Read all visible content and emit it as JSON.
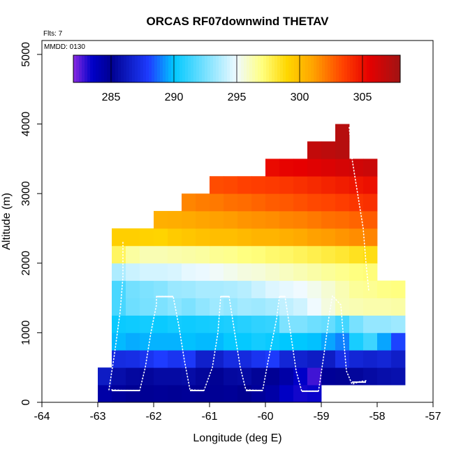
{
  "chart_data": {
    "type": "heatmap",
    "title": "ORCAS RF07downwind THETAV",
    "xlabel": "Longitude (deg E)",
    "ylabel": "Altitude (m)",
    "xlim": [
      -64,
      -57
    ],
    "ylim": [
      0,
      5200
    ],
    "x_ticks": [
      -64,
      -63,
      -62,
      -61,
      -60,
      -59,
      -58,
      -57
    ],
    "y_ticks": [
      0,
      1000,
      2000,
      3000,
      4000,
      5000
    ],
    "annotations": {
      "flights": "Flts: 7",
      "date": "MMDD: 0130"
    },
    "colorbar": {
      "range": [
        282,
        308
      ],
      "ticks": [
        285,
        290,
        295,
        300,
        305
      ],
      "palette": [
        "#8a2be2",
        "#0000c8",
        "#000090",
        "#1e3cff",
        "#00c8ff",
        "#f0faff",
        "#ffff80",
        "#ffd700",
        "#ffa500",
        "#ff4000",
        "#e60000",
        "#a01414"
      ],
      "palette_stops": [
        282,
        283.5,
        285,
        288,
        290,
        295,
        297,
        299,
        301,
        303.5,
        305.5,
        308
      ]
    },
    "cell_size": {
      "lon": 0.25,
      "alt": 250
    },
    "rows": [
      {
        "alt": 0,
        "lon_start": -63.0,
        "values": [
          284.4,
          284.7,
          284.9,
          284.9,
          284.8,
          284.9,
          284.8,
          284.9,
          284.9,
          284.8,
          285.0,
          284.7,
          284.4,
          283.6,
          283.3,
          283.4
        ]
      },
      {
        "alt": 250,
        "lon_start": -63.0,
        "values": [
          286.4,
          285.7,
          285.4,
          285.3,
          285.5,
          285.5,
          285.6,
          285.3,
          285.1,
          285.4,
          285.5,
          285.2,
          284.9,
          284.4,
          283.5,
          282.8,
          284.8,
          285.1,
          285.3,
          285.5,
          285.7,
          285.8
        ]
      },
      {
        "alt": 500,
        "lon_start": -62.75,
        "values": [
          287.2,
          287.3,
          287.6,
          288.0,
          287.6,
          287.8,
          286.6,
          286.6,
          287.2,
          287.1,
          287.6,
          287.9,
          286.9,
          286.7,
          286.4,
          286.4,
          287.4,
          286.9,
          286.7,
          286.9,
          286.5
        ]
      },
      {
        "alt": 750,
        "lon_start": -62.75,
        "values": [
          289.8,
          289.6,
          289.7,
          289.7,
          289.7,
          289.9,
          289.8,
          289.8,
          290.1,
          290.1,
          290.4,
          290.2,
          290.0,
          290.0,
          289.9,
          289.5,
          289.0,
          290.5,
          291.3,
          289.5,
          288.1
        ]
      },
      {
        "alt": 1000,
        "lon_start": -62.75,
        "values": [
          290.2,
          290.3,
          290.4,
          290.2,
          290.4,
          290.3,
          290.4,
          290.5,
          290.6,
          290.8,
          291.0,
          291.1,
          292.6,
          292.6,
          292.3,
          292.1,
          291.4,
          292.5,
          293.1,
          293.1,
          293.3
        ]
      },
      {
        "alt": 1250,
        "lon_start": -62.75,
        "values": [
          291.5,
          292.3,
          292.5,
          292.6,
          292.9,
          292.6,
          293.0,
          293.3,
          293.1,
          293.4,
          293.3,
          293.5,
          294.0,
          294.3,
          295.0,
          295.5,
          296.1,
          296.2,
          296.3,
          296.3,
          296.4
        ]
      },
      {
        "alt": 1500,
        "lon_start": -62.75,
        "values": [
          291.5,
          292.4,
          292.6,
          292.8,
          293.2,
          293.3,
          293.5,
          293.5,
          293.6,
          293.8,
          294.2,
          294.6,
          294.8,
          295.0,
          295.3,
          295.7,
          296.2,
          296.6,
          296.7,
          296.9,
          297.0
        ]
      },
      {
        "alt": 1750,
        "lon_start": -62.75,
        "values": [
          293.6,
          294.2,
          294.4,
          294.4,
          294.5,
          294.8,
          294.9,
          295.1,
          295.3,
          295.5,
          295.6,
          295.8,
          296.0,
          296.2,
          296.4,
          296.6,
          296.8,
          297.0,
          297.1
        ]
      },
      {
        "alt": 2000,
        "lon_start": -62.75,
        "values": [
          297.5,
          296.5,
          296.2,
          296.2,
          296.3,
          296.4,
          296.5,
          296.7,
          296.8,
          297.0,
          297.1,
          297.3,
          297.4,
          297.6,
          297.8,
          298.0,
          298.2,
          298.5,
          298.7
        ]
      },
      {
        "alt": 2250,
        "lon_start": -62.75,
        "values": [
          299.3,
          299.3,
          299.2,
          299.1,
          299.5,
          299.7,
          299.9,
          300.0,
          300.0,
          300.2,
          300.4,
          300.4,
          300.6,
          300.8,
          301.1,
          301.2,
          301.4,
          301.6,
          301.8
        ]
      },
      {
        "alt": 2500,
        "lon_start": -62.0,
        "values": [
          300.6,
          300.7,
          300.8,
          301.0,
          301.1,
          301.2,
          301.4,
          301.5,
          301.6,
          301.8,
          301.9,
          302.1,
          302.3,
          302.4,
          302.6,
          302.8
        ]
      },
      {
        "alt": 2750,
        "lon_start": -61.5,
        "values": [
          301.8,
          302.0,
          302.1,
          302.3,
          302.4,
          302.6,
          302.8,
          302.9,
          303.1,
          303.3,
          303.4,
          303.6,
          303.8,
          304.0
        ]
      },
      {
        "alt": 3000,
        "lon_start": -61.0,
        "values": [
          303.2,
          303.3,
          303.5,
          303.6,
          303.7,
          303.8,
          304.0,
          304.2,
          304.4,
          304.6,
          304.8,
          305.0
        ]
      },
      {
        "alt": 3250,
        "lon_start": -60.0,
        "values": [
          305.2,
          305.4,
          305.5,
          305.7,
          305.9,
          306.1,
          306.3,
          306.5
        ]
      },
      {
        "alt": 3500,
        "lon_start": -59.25,
        "values": [
          306.8,
          307.0,
          307.2
        ]
      },
      {
        "alt": 3750,
        "lon_start": -58.75,
        "values": [
          307.2
        ]
      }
    ],
    "flight_track": [
      [
        -62.75,
        180
      ],
      [
        -62.5,
        170
      ],
      [
        -62.25,
        170
      ],
      [
        -62.15,
        500
      ],
      [
        -62.05,
        1000
      ],
      [
        -61.95,
        1400
      ],
      [
        -61.95,
        1520
      ],
      [
        -61.65,
        1520
      ],
      [
        -61.55,
        1100
      ],
      [
        -61.45,
        600
      ],
      [
        -61.35,
        180
      ],
      [
        -61.1,
        170
      ],
      [
        -60.95,
        500
      ],
      [
        -60.85,
        1000
      ],
      [
        -60.8,
        1520
      ],
      [
        -60.65,
        1520
      ],
      [
        -60.55,
        1000
      ],
      [
        -60.45,
        500
      ],
      [
        -60.35,
        180
      ],
      [
        -60.05,
        170
      ],
      [
        -59.95,
        600
      ],
      [
        -59.8,
        1200
      ],
      [
        -59.75,
        1520
      ],
      [
        -59.65,
        1520
      ],
      [
        -59.55,
        1000
      ],
      [
        -59.45,
        450
      ],
      [
        -59.35,
        160
      ],
      [
        -59.05,
        160
      ],
      [
        -58.95,
        700
      ],
      [
        -58.85,
        1300
      ],
      [
        -58.8,
        1530
      ],
      [
        -58.65,
        1400
      ],
      [
        -58.6,
        900
      ],
      [
        -58.55,
        450
      ],
      [
        -58.45,
        260
      ],
      [
        -58.3,
        300
      ],
      [
        -58.2,
        310
      ]
    ],
    "flight_track_2": [
      [
        -62.8,
        180
      ],
      [
        -62.7,
        700
      ],
      [
        -62.6,
        1300
      ],
      [
        -62.55,
        1800
      ],
      [
        -62.55,
        2300
      ]
    ],
    "flight_track_3": [
      [
        -58.5,
        3950
      ],
      [
        -58.45,
        3500
      ],
      [
        -58.35,
        3000
      ],
      [
        -58.25,
        2500
      ],
      [
        -58.2,
        2000
      ],
      [
        -58.15,
        1600
      ]
    ]
  }
}
